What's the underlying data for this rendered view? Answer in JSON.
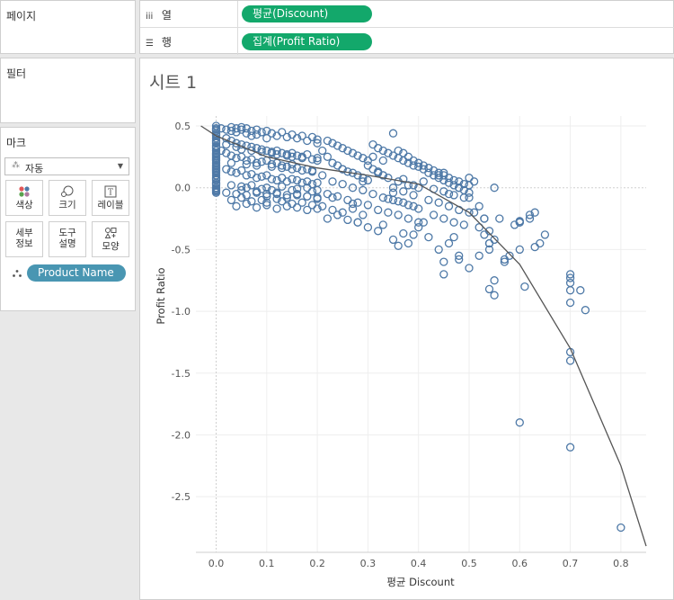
{
  "left_panel": {
    "pages_title": "페이지",
    "filters_title": "필터",
    "marks_title": "마크",
    "mark_type": {
      "label": "자동",
      "icon": "auto-mark-icon"
    },
    "buttons": {
      "color": "색상",
      "size": "크기",
      "label": "레이블",
      "detail": "세부\n정보",
      "tooltip": "도구\n설명",
      "shape": "모양"
    },
    "detail_field": "Product Name",
    "colors": {
      "detail_pill": "#4996b2"
    }
  },
  "shelves": {
    "columns_label": "열",
    "rows_label": "행",
    "columns_pill": "평균(Discount)",
    "rows_pill": "집계(Profit Ratio)",
    "colors": {
      "pill": "#13a86b"
    }
  },
  "sheet": {
    "title": "시트 1"
  },
  "chart_data": {
    "type": "scatter",
    "xlabel": "평균 Discount",
    "ylabel": "Profit Ratio",
    "xlim": [
      -0.04,
      0.85
    ],
    "ylim": [
      -2.95,
      0.58
    ],
    "x_ticks": [
      0.0,
      0.1,
      0.2,
      0.3,
      0.4,
      0.5,
      0.6,
      0.7,
      0.8
    ],
    "x_tick_labels": [
      "0.0",
      "0.1",
      "0.2",
      "0.3",
      "0.4",
      "0.5",
      "0.6",
      "0.7",
      "0.8"
    ],
    "y_ticks": [
      0.5,
      0.0,
      -0.5,
      -1.0,
      -1.5,
      -2.0,
      -2.5
    ],
    "y_tick_labels": [
      "0.5",
      "0.0",
      "-0.5",
      "-1.0",
      "-1.5",
      "-2.0",
      "-2.5"
    ],
    "grid": true,
    "marker": "hollow-circle",
    "colors": {
      "marker": "#4e79a7",
      "trend": "#555555",
      "grid": "#eeeeee"
    },
    "trend_line": {
      "type": "polynomial",
      "x": [
        -0.03,
        0.0,
        0.1,
        0.2,
        0.3,
        0.4,
        0.5,
        0.6,
        0.7,
        0.8,
        0.85
      ],
      "y": [
        0.5,
        0.42,
        0.25,
        0.16,
        0.1,
        0.03,
        -0.2,
        -0.62,
        -1.3,
        -2.25,
        -2.9
      ]
    },
    "series": [
      {
        "x": [
          0.0,
          0.0,
          0.0,
          0.0,
          0.0,
          0.0,
          0.0,
          0.0,
          0.0,
          0.0,
          0.0,
          0.0,
          0.0,
          0.0,
          0.0,
          0.0,
          0.0,
          0.0,
          0.0,
          0.0,
          0.0,
          0.0,
          0.0,
          0.0,
          0.0,
          0.0,
          0.0,
          0.0,
          0.0,
          0.0,
          0.0,
          0.0,
          0.0,
          0.0,
          0.0,
          0.0,
          0.0,
          0.0,
          0.0,
          0.0,
          0.0,
          0.0,
          0.01,
          0.02,
          0.03,
          0.03,
          0.04,
          0.04,
          0.05,
          0.05,
          0.06,
          0.06,
          0.07,
          0.07,
          0.08,
          0.08,
          0.09,
          0.1,
          0.1,
          0.11,
          0.12,
          0.13,
          0.14,
          0.15,
          0.16,
          0.17,
          0.18,
          0.19,
          0.2,
          0.2,
          0.02,
          0.03,
          0.04,
          0.05,
          0.06,
          0.07,
          0.08,
          0.09,
          0.1,
          0.11,
          0.12,
          0.13,
          0.14,
          0.15,
          0.16,
          0.17,
          0.18,
          0.2,
          0.01,
          0.02,
          0.03,
          0.04,
          0.05,
          0.06,
          0.07,
          0.08,
          0.09,
          0.1,
          0.11,
          0.12,
          0.13,
          0.14,
          0.15,
          0.16,
          0.18,
          0.19,
          0.02,
          0.03,
          0.04,
          0.05,
          0.06,
          0.07,
          0.08,
          0.09,
          0.1,
          0.11,
          0.12,
          0.13,
          0.14,
          0.15,
          0.16,
          0.17,
          0.18,
          0.19,
          0.2,
          0.03,
          0.05,
          0.06,
          0.07,
          0.09,
          0.1,
          0.11,
          0.13,
          0.15,
          0.16,
          0.18,
          0.19,
          0.2,
          0.02,
          0.04,
          0.06,
          0.08,
          0.1,
          0.12,
          0.14,
          0.16,
          0.18,
          0.2,
          0.03,
          0.05,
          0.07,
          0.09,
          0.1,
          0.12,
          0.13,
          0.15,
          0.17,
          0.19,
          0.04,
          0.06,
          0.08,
          0.1,
          0.12,
          0.14,
          0.16,
          0.18,
          0.2,
          0.02,
          0.04,
          0.05,
          0.07,
          0.09,
          0.11,
          0.12,
          0.14,
          0.15,
          0.17,
          0.19,
          0.2,
          0.03,
          0.06,
          0.08,
          0.11,
          0.13,
          0.15,
          0.17,
          0.19,
          0.05,
          0.08,
          0.1,
          0.12,
          0.14,
          0.16,
          0.18,
          0.2,
          0.22,
          0.23,
          0.24,
          0.25,
          0.26,
          0.27,
          0.28,
          0.29,
          0.3,
          0.22,
          0.23,
          0.24,
          0.25,
          0.26,
          0.27,
          0.28,
          0.29,
          0.3,
          0.21,
          0.23,
          0.25,
          0.27,
          0.29,
          0.22,
          0.24,
          0.26,
          0.28,
          0.3,
          0.21,
          0.23,
          0.25,
          0.27,
          0.29,
          0.22,
          0.24,
          0.26,
          0.28,
          0.21,
          0.25,
          0.29,
          0.23,
          0.27,
          0.3,
          0.31,
          0.32,
          0.33,
          0.34,
          0.35,
          0.36,
          0.37,
          0.38,
          0.39,
          0.4,
          0.31,
          0.32,
          0.33,
          0.34,
          0.36,
          0.38,
          0.4,
          0.31,
          0.33,
          0.35,
          0.37,
          0.39,
          0.32,
          0.34,
          0.36,
          0.38,
          0.4,
          0.31,
          0.33,
          0.35,
          0.37,
          0.39,
          0.32,
          0.34,
          0.36,
          0.38,
          0.4,
          0.33,
          0.35,
          0.37,
          0.39,
          0.35,
          0.36,
          0.37,
          0.38,
          0.39,
          0.4,
          0.41,
          0.42,
          0.43,
          0.44,
          0.45,
          0.46,
          0.47,
          0.48,
          0.49,
          0.5,
          0.41,
          0.42,
          0.43,
          0.44,
          0.45,
          0.46,
          0.47,
          0.48,
          0.49,
          0.5,
          0.41,
          0.43,
          0.45,
          0.47,
          0.49,
          0.42,
          0.44,
          0.46,
          0.48,
          0.5,
          0.43,
          0.45,
          0.47,
          0.49,
          0.44,
          0.46,
          0.48,
          0.5,
          0.45,
          0.5,
          0.51,
          0.52,
          0.53,
          0.54,
          0.55,
          0.52,
          0.53,
          0.54,
          0.51,
          0.55,
          0.44,
          0.45,
          0.46,
          0.48,
          0.47,
          0.5,
          0.52,
          0.54,
          0.45,
          0.48,
          0.28,
          0.3,
          0.32,
          0.33,
          0.35,
          0.37,
          0.38,
          0.4,
          0.42,
          0.36,
          0.39,
          0.41,
          0.54,
          0.55,
          0.56,
          0.57,
          0.58,
          0.59,
          0.6,
          0.61,
          0.62,
          0.63,
          0.64,
          0.65,
          0.6,
          0.62,
          0.63,
          0.57,
          0.6,
          0.53,
          0.54,
          0.55,
          0.6,
          0.7,
          0.7,
          0.7,
          0.7,
          0.7,
          0.72,
          0.73,
          0.7,
          0.7,
          0.6,
          0.7,
          0.8
        ],
        "y": [
          0.5,
          0.48,
          0.46,
          0.44,
          0.42,
          0.4,
          0.38,
          0.36,
          0.34,
          0.32,
          0.3,
          0.28,
          0.26,
          0.24,
          0.22,
          0.2,
          0.18,
          0.16,
          0.14,
          0.12,
          0.1,
          0.08,
          0.06,
          0.04,
          0.02,
          0.0,
          -0.02,
          -0.04,
          0.47,
          0.43,
          0.37,
          0.33,
          0.27,
          0.23,
          0.17,
          0.13,
          0.07,
          0.03,
          -0.01,
          -0.03,
          0.25,
          0.15,
          0.48,
          0.47,
          0.49,
          0.46,
          0.48,
          0.45,
          0.49,
          0.47,
          0.48,
          0.44,
          0.46,
          0.42,
          0.47,
          0.43,
          0.45,
          0.46,
          0.4,
          0.44,
          0.42,
          0.45,
          0.41,
          0.43,
          0.4,
          0.42,
          0.38,
          0.41,
          0.39,
          0.36,
          0.4,
          0.38,
          0.36,
          0.35,
          0.34,
          0.33,
          0.32,
          0.31,
          0.3,
          0.29,
          0.3,
          0.28,
          0.27,
          0.28,
          0.26,
          0.25,
          0.27,
          0.24,
          0.3,
          0.28,
          0.26,
          0.24,
          0.25,
          0.22,
          0.23,
          0.2,
          0.21,
          0.22,
          0.19,
          0.2,
          0.18,
          0.17,
          0.19,
          0.16,
          0.15,
          0.14,
          0.15,
          0.13,
          0.12,
          0.14,
          0.1,
          0.11,
          0.08,
          0.09,
          0.1,
          0.07,
          0.06,
          0.08,
          0.05,
          0.07,
          0.06,
          0.04,
          0.05,
          0.03,
          0.04,
          0.02,
          0.01,
          0.0,
          0.02,
          -0.01,
          0.0,
          -0.02,
          0.01,
          -0.02,
          -0.01,
          0.0,
          -0.03,
          -0.02,
          -0.04,
          -0.05,
          -0.06,
          -0.04,
          -0.07,
          -0.05,
          -0.08,
          -0.06,
          -0.07,
          -0.09,
          -0.1,
          -0.08,
          -0.11,
          -0.1,
          -0.12,
          -0.09,
          -0.11,
          -0.13,
          -0.12,
          -0.14,
          -0.15,
          -0.13,
          -0.16,
          -0.14,
          -0.17,
          -0.15,
          -0.16,
          -0.18,
          -0.17,
          0.35,
          0.33,
          0.31,
          0.3,
          0.29,
          0.28,
          0.27,
          0.26,
          0.25,
          0.24,
          0.23,
          0.22,
          0.2,
          0.19,
          0.18,
          0.17,
          0.16,
          0.15,
          0.14,
          0.13,
          -0.02,
          -0.03,
          -0.05,
          -0.04,
          -0.06,
          -0.05,
          -0.07,
          -0.08,
          0.38,
          0.36,
          0.34,
          0.32,
          0.3,
          0.28,
          0.26,
          0.24,
          0.22,
          0.25,
          0.2,
          0.18,
          0.15,
          0.13,
          0.12,
          0.1,
          0.08,
          0.06,
          0.1,
          0.05,
          0.03,
          0.0,
          -0.02,
          -0.05,
          -0.07,
          -0.1,
          -0.12,
          -0.14,
          -0.15,
          -0.18,
          -0.2,
          -0.17,
          -0.22,
          -0.25,
          -0.22,
          -0.26,
          -0.28,
          0.3,
          0.15,
          0.05,
          -0.08,
          -0.13,
          0.18,
          0.35,
          0.32,
          0.3,
          0.28,
          0.26,
          0.24,
          0.22,
          0.2,
          0.18,
          0.17,
          0.15,
          0.12,
          0.1,
          0.08,
          0.05,
          0.02,
          0.0,
          -0.05,
          -0.08,
          -0.1,
          -0.12,
          -0.15,
          -0.18,
          -0.2,
          -0.22,
          -0.25,
          -0.28,
          0.25,
          0.1,
          0.0,
          -0.03,
          -0.06,
          0.13,
          -0.09,
          -0.11,
          -0.14,
          -0.17,
          0.22,
          -0.04,
          0.07,
          0.02,
          0.44,
          0.3,
          0.28,
          0.25,
          0.22,
          0.2,
          0.18,
          0.16,
          0.14,
          0.12,
          0.1,
          0.08,
          0.06,
          0.05,
          0.03,
          0.02,
          0.15,
          0.12,
          0.1,
          0.08,
          0.06,
          0.04,
          0.02,
          0.0,
          -0.02,
          -0.04,
          0.05,
          -0.01,
          -0.03,
          -0.06,
          -0.08,
          -0.1,
          -0.12,
          -0.15,
          -0.18,
          -0.2,
          -0.22,
          -0.25,
          -0.28,
          -0.3,
          0.1,
          -0.05,
          0.0,
          -0.08,
          0.12,
          0.08,
          0.05,
          -0.15,
          -0.25,
          -0.35,
          -0.42,
          -0.32,
          -0.38,
          -0.45,
          -0.2,
          0.0,
          -0.5,
          -0.6,
          -0.45,
          -0.55,
          -0.4,
          -0.65,
          -0.55,
          -0.5,
          -0.7,
          -0.58,
          -0.28,
          -0.32,
          -0.35,
          -0.3,
          -0.42,
          -0.37,
          -0.45,
          -0.32,
          -0.4,
          -0.47,
          -0.38,
          -0.28,
          -0.82,
          -0.75,
          -0.25,
          -0.6,
          -0.55,
          -0.3,
          -0.5,
          -0.8,
          -0.25,
          -0.2,
          -0.45,
          -0.38,
          -0.27,
          -0.22,
          -0.48,
          -0.58,
          -0.28,
          -0.25,
          -0.45,
          -0.87,
          -0.28,
          -0.7,
          -0.73,
          -0.77,
          -0.83,
          -0.93,
          -0.83,
          -0.99,
          -1.33,
          -1.4,
          -1.9,
          -2.1,
          -2.75
        ]
      }
    ]
  }
}
